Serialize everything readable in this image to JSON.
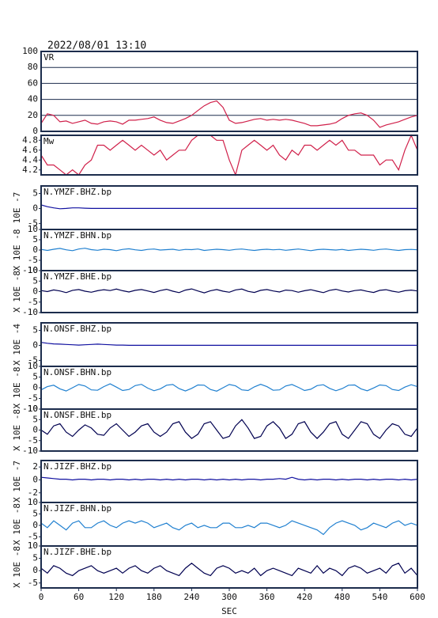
{
  "chart_data": {
    "type": "line",
    "title": "2022/08/01 13:10",
    "xlabel": "SEC",
    "x": [
      0,
      10,
      20,
      30,
      40,
      50,
      60,
      70,
      80,
      90,
      100,
      110,
      120,
      130,
      140,
      150,
      160,
      170,
      180,
      190,
      200,
      210,
      220,
      230,
      240,
      250,
      260,
      270,
      280,
      290,
      300,
      310,
      320,
      330,
      340,
      350,
      360,
      370,
      380,
      390,
      400,
      410,
      420,
      430,
      440,
      450,
      460,
      470,
      480,
      490,
      500,
      510,
      520,
      530,
      540,
      550,
      560,
      570,
      580,
      590,
      600
    ],
    "xlim": [
      0,
      600
    ],
    "xticks": [
      0,
      60,
      120,
      180,
      240,
      300,
      360,
      420,
      480,
      540,
      600
    ],
    "panels": [
      {
        "label": "VR",
        "color": "#d0204a",
        "grid": true,
        "ylim": [
          0,
          100
        ],
        "yticks": [
          0,
          20,
          40,
          60,
          80,
          100
        ],
        "values": [
          10,
          22,
          20,
          12,
          13,
          10,
          12,
          14,
          10,
          9,
          12,
          13,
          12,
          9,
          14,
          14,
          15,
          16,
          18,
          14,
          11,
          10,
          13,
          16,
          20,
          26,
          32,
          36,
          38,
          30,
          14,
          10,
          11,
          13,
          15,
          16,
          14,
          15,
          14,
          15,
          14,
          12,
          10,
          7,
          7,
          8,
          9,
          11,
          16,
          20,
          22,
          23,
          20,
          14,
          5,
          8,
          10,
          12,
          15,
          18,
          20
        ]
      },
      {
        "label": "Mw",
        "color": "#d0204a",
        "grid": false,
        "ylim": [
          4.1,
          4.9
        ],
        "yticks": [
          4.2,
          4.4,
          4.6,
          4.8
        ],
        "values": [
          4.5,
          4.3,
          4.3,
          4.2,
          4.1,
          4.2,
          4.1,
          4.3,
          4.4,
          4.7,
          4.7,
          4.6,
          4.7,
          4.8,
          4.7,
          4.6,
          4.7,
          4.6,
          4.5,
          4.6,
          4.4,
          4.5,
          4.6,
          4.6,
          4.8,
          4.9,
          4.9,
          4.9,
          4.8,
          4.8,
          4.4,
          4.1,
          4.6,
          4.7,
          4.8,
          4.7,
          4.6,
          4.7,
          4.5,
          4.4,
          4.6,
          4.5,
          4.7,
          4.7,
          4.6,
          4.7,
          4.8,
          4.7,
          4.8,
          4.6,
          4.6,
          4.5,
          4.5,
          4.5,
          4.3,
          4.4,
          4.4,
          4.2,
          4.6,
          4.9,
          4.6
        ]
      },
      {
        "label": "N.YMZF.BHZ.bp",
        "ylabel": "10E -7",
        "color": "#1010a0",
        "grid": false,
        "ylim": [
          -7,
          7.5
        ],
        "yticks": [
          -5,
          0,
          5
        ],
        "values": [
          1.2,
          0.6,
          0.2,
          -0.1,
          0,
          0.2,
          0.2,
          0.1,
          0,
          0,
          0,
          0,
          0,
          0,
          0,
          0,
          0,
          0,
          0,
          0,
          0,
          0,
          0,
          0,
          0,
          0,
          0,
          0,
          0,
          0,
          0,
          0,
          0,
          0,
          0,
          0,
          0,
          0,
          0,
          0,
          0,
          0,
          0,
          0,
          0,
          0,
          0,
          0,
          0,
          0,
          0,
          0,
          0,
          0,
          0,
          0,
          0,
          0,
          0,
          0,
          0
        ]
      },
      {
        "label": "N.YMZF.BHN.bp",
        "ylabel": "X 10E -8",
        "color": "#2080d0",
        "grid": false,
        "ylim": [
          -10,
          10
        ],
        "yticks": [
          -10,
          -5,
          0,
          5,
          10
        ],
        "values": [
          0.3,
          -0.2,
          0.4,
          0.8,
          0.1,
          -0.3,
          0.5,
          0.9,
          0.2,
          -0.1,
          0.4,
          0.2,
          -0.3,
          0.3,
          0.6,
          0.1,
          -0.2,
          0.3,
          0.5,
          0,
          0.2,
          0.4,
          -0.1,
          0.3,
          0.2,
          0.5,
          -0.2,
          0.1,
          0.4,
          0.2,
          -0.1,
          0.3,
          0.5,
          0.1,
          -0.2,
          0.2,
          0.4,
          0.1,
          0.3,
          -0.1,
          0.2,
          0.5,
          0.1,
          -0.3,
          0.2,
          0.4,
          0.2,
          0,
          0.3,
          -0.2,
          0.1,
          0.4,
          0.2,
          -0.1,
          0.3,
          0.5,
          0.1,
          -0.2,
          0.2,
          0.3,
          0.1
        ]
      },
      {
        "label": "N.YMZF.BHE.bp",
        "ylabel": "X 10E -8",
        "color": "#000050",
        "grid": false,
        "ylim": [
          -10,
          10
        ],
        "yticks": [
          -10,
          -5,
          0,
          5,
          10
        ],
        "values": [
          0.5,
          0,
          0.8,
          0.3,
          -0.5,
          0.6,
          1,
          0.2,
          -0.3,
          0.4,
          0.9,
          0.5,
          1.2,
          0.4,
          -0.2,
          0.6,
          1,
          0.3,
          -0.4,
          0.5,
          1.1,
          0.2,
          -0.5,
          0.7,
          1.3,
          0.3,
          -0.6,
          0.4,
          1,
          0.2,
          -0.3,
          0.8,
          1.2,
          0.1,
          -0.4,
          0.6,
          1,
          0.3,
          -0.2,
          0.7,
          0.5,
          -0.3,
          0.4,
          0.9,
          0.2,
          -0.5,
          0.6,
          1.1,
          0.3,
          -0.2,
          0.5,
          0.8,
          0.1,
          -0.4,
          0.6,
          0.9,
          0.2,
          -0.3,
          0.4,
          0.7,
          0.3
        ]
      },
      {
        "label": "N.ONSF.BHZ.bp",
        "ylabel": "X 10E -4",
        "color": "#1010a0",
        "grid": false,
        "ylim": [
          -7,
          7.5
        ],
        "yticks": [
          -5,
          0,
          5
        ],
        "values": [
          1,
          0.7,
          0.5,
          0.4,
          0.3,
          0.2,
          0.1,
          0.2,
          0.3,
          0.4,
          0.3,
          0.2,
          0.1,
          0.1,
          0,
          0,
          0,
          0,
          0,
          0,
          0,
          0,
          0,
          0,
          0,
          0,
          0,
          0,
          0,
          0,
          0,
          0,
          0,
          0,
          0,
          0,
          0,
          0,
          0,
          0,
          0,
          0,
          0,
          0,
          0,
          0,
          0,
          0,
          0,
          0,
          0,
          0,
          0,
          0,
          0,
          0,
          0,
          0,
          0,
          0,
          0
        ]
      },
      {
        "label": "N.ONSF.BHN.bp",
        "ylabel": "X 10E -8",
        "color": "#2080d0",
        "grid": false,
        "ylim": [
          -10,
          10
        ],
        "yticks": [
          -10,
          -5,
          0,
          5,
          10
        ],
        "values": [
          -1,
          0.5,
          1.2,
          -0.5,
          -1.5,
          0,
          1.5,
          0.8,
          -1,
          -1.2,
          0.5,
          1.8,
          0.3,
          -1.3,
          -0.8,
          1,
          1.6,
          -0.2,
          -1.4,
          -0.5,
          1.2,
          1.5,
          -0.4,
          -1.5,
          -0.3,
          1.3,
          1.2,
          -0.8,
          -1.6,
          0,
          1.5,
          0.9,
          -1,
          -1.3,
          0.4,
          1.6,
          0.5,
          -1.2,
          -1,
          0.8,
          1.5,
          0.2,
          -1.3,
          -0.7,
          1,
          1.4,
          -0.3,
          -1.4,
          -0.4,
          1.2,
          1.3,
          -0.5,
          -1.4,
          -0.1,
          1.3,
          1,
          -0.8,
          -1.3,
          0.3,
          1.4,
          0.5
        ]
      },
      {
        "label": "N.ONSF.BHE.bp",
        "ylabel": "X 10E -8",
        "color": "#000050",
        "grid": false,
        "ylim": [
          -10,
          10
        ],
        "yticks": [
          -10,
          -5,
          0,
          5,
          10
        ],
        "values": [
          0,
          -2,
          2,
          3,
          -1,
          -3,
          0,
          2.5,
          1,
          -2,
          -2.5,
          1,
          3,
          0,
          -3,
          -1,
          2,
          3,
          -1,
          -3,
          -1,
          3,
          4,
          -1,
          -4,
          -2,
          3,
          4,
          0,
          -4,
          -3,
          2,
          5,
          1,
          -4,
          -3,
          2,
          4,
          1,
          -4,
          -2,
          3,
          4,
          -1,
          -4,
          -1,
          3,
          4,
          -2,
          -4,
          0,
          4,
          3,
          -2,
          -4,
          0,
          3,
          2,
          -2,
          -3,
          1
        ]
      },
      {
        "label": "N.JIZF.BHZ.bp",
        "ylabel": "X 10E -7",
        "color": "#1010a0",
        "grid": false,
        "ylim": [
          -3.5,
          3
        ],
        "yticks": [
          -2,
          0,
          2
        ],
        "values": [
          0.4,
          0.3,
          0.2,
          0.1,
          0.1,
          0,
          0.1,
          0.1,
          0,
          0.1,
          0.1,
          0,
          0.1,
          0.1,
          0,
          0.1,
          0,
          0.1,
          0.1,
          0,
          0.1,
          0,
          0.1,
          0,
          0.1,
          0.1,
          0,
          0.1,
          0,
          0.1,
          0,
          0.1,
          0,
          0.1,
          0.1,
          0,
          0.1,
          0.1,
          0.2,
          0.1,
          0.4,
          0.1,
          0,
          0.1,
          0,
          0.1,
          0.1,
          0,
          0.1,
          0,
          0.1,
          0.1,
          0,
          0.1,
          0,
          0.1,
          0.1,
          0,
          0.1,
          0,
          0.1
        ]
      },
      {
        "label": "N.JIZF.BHN.bp",
        "ylabel": "X 10E -8",
        "color": "#2080d0",
        "grid": false,
        "ylim": [
          -9,
          10
        ],
        "yticks": [
          -5,
          0,
          5,
          10
        ],
        "values": [
          1,
          -1,
          2,
          0,
          -2,
          1,
          2,
          -1,
          -1,
          1,
          2,
          0,
          -1,
          1,
          2,
          1,
          2,
          1,
          -1,
          0,
          1,
          -1,
          -2,
          0,
          1,
          -1,
          0,
          -1,
          -1,
          1,
          1,
          -1,
          -1,
          0,
          -1,
          1,
          1,
          0,
          -1,
          0,
          2,
          1,
          0,
          -1,
          -2,
          -4,
          -1,
          1,
          2,
          1,
          0,
          -2,
          -1,
          1,
          0,
          -1,
          1,
          2,
          0,
          1,
          0
        ]
      },
      {
        "label": "N.JIZF.BHE.bp",
        "ylabel": "X 10E -8",
        "color": "#000050",
        "grid": false,
        "ylim": [
          -7,
          10
        ],
        "yticks": [
          -5,
          0,
          5,
          10
        ],
        "values": [
          1,
          -1,
          2,
          1,
          -1,
          -2,
          0,
          1,
          2,
          0,
          -1,
          0,
          1,
          -1,
          1,
          2,
          0,
          -1,
          1,
          2,
          0,
          -1,
          -2,
          1,
          3,
          1,
          -1,
          -2,
          1,
          2,
          1,
          -1,
          0,
          -1,
          1,
          -2,
          0,
          1,
          0,
          -1,
          -2,
          1,
          0,
          -1,
          2,
          -1,
          1,
          0,
          -2,
          1,
          2,
          1,
          -1,
          0,
          1,
          -1,
          2,
          3,
          -1,
          1,
          -2
        ]
      }
    ]
  }
}
